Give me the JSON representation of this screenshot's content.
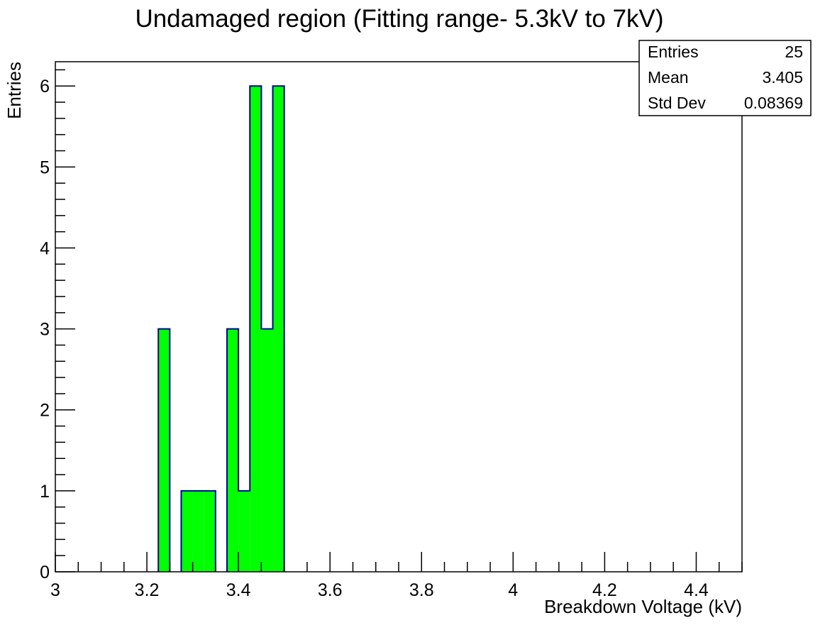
{
  "chart_data": {
    "type": "bar",
    "title": "Undamaged region (Fitting range- 5.3kV to 7kV)",
    "xlabel": "Breakdown Voltage (kV)",
    "ylabel": "Entries",
    "xlim": [
      3,
      4.5
    ],
    "ylim": [
      0,
      6.3
    ],
    "bin_width": 0.025,
    "x_ticks": [
      "3",
      "3.2",
      "3.4",
      "3.6",
      "3.8",
      "4",
      "4.2",
      "4.4"
    ],
    "y_ticks": [
      "0",
      "1",
      "2",
      "3",
      "4",
      "5",
      "6"
    ],
    "bins": [
      {
        "x_low": 3.225,
        "x_high": 3.25,
        "count": 3
      },
      {
        "x_low": 3.275,
        "x_high": 3.3,
        "count": 1
      },
      {
        "x_low": 3.3,
        "x_high": 3.325,
        "count": 1
      },
      {
        "x_low": 3.325,
        "x_high": 3.35,
        "count": 1
      },
      {
        "x_low": 3.375,
        "x_high": 3.4,
        "count": 3
      },
      {
        "x_low": 3.4,
        "x_high": 3.425,
        "count": 1
      },
      {
        "x_low": 3.425,
        "x_high": 3.45,
        "count": 6
      },
      {
        "x_low": 3.45,
        "x_high": 3.475,
        "count": 3
      },
      {
        "x_low": 3.475,
        "x_high": 3.5,
        "count": 6
      }
    ],
    "fill_color": "#00ff00",
    "line_color": "#000099",
    "grid": false,
    "legend_position": "top-right"
  },
  "stats_box": {
    "entries_label": "Entries",
    "entries_value": "25",
    "mean_label": "Mean",
    "mean_value": "3.405",
    "stddev_label": "Std Dev",
    "stddev_value": "0.08369"
  }
}
